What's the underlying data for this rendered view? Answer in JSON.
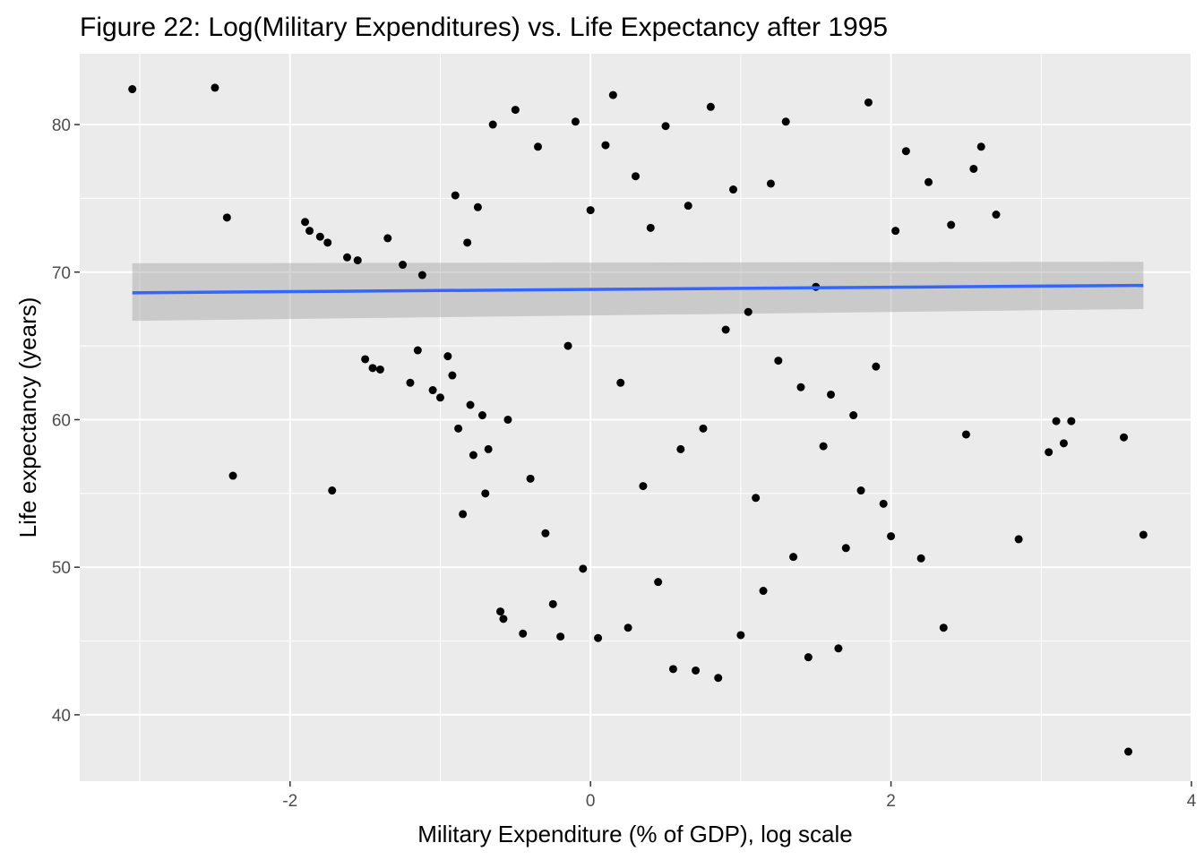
{
  "chart_data": {
    "type": "scatter",
    "title": "Figure 22: Log(Military Expenditures) vs. Life Expectancy after 1995",
    "xlabel": "Military Expenditure (% of GDP), log scale",
    "ylabel": "Life expectancy (years)",
    "xlim": [
      -3.4,
      4.0
    ],
    "ylim": [
      35.5,
      84.8
    ],
    "x_ticks": [
      -2,
      0,
      2,
      4
    ],
    "x_tick_labels": [
      "-2",
      "0",
      "2",
      "4"
    ],
    "y_ticks": [
      40,
      50,
      60,
      70,
      80
    ],
    "y_tick_labels": [
      "40",
      "50",
      "60",
      "70",
      "80"
    ],
    "grid": true,
    "legend": "none",
    "colors": {
      "panel": "#ebebeb",
      "grid": "#ffffff",
      "point": "#000000",
      "fit": "#3366ff",
      "ribbon": "#999999"
    },
    "fit_line": {
      "method": "lm",
      "x": [
        -3.05,
        3.68
      ],
      "y": [
        68.6,
        69.1
      ],
      "ci_lower": [
        66.7,
        67.5
      ],
      "ci_upper": [
        70.6,
        70.7
      ]
    },
    "points": {
      "x": [
        -3.05,
        -2.5,
        -2.42,
        -2.38,
        -1.9,
        -1.87,
        -1.8,
        -1.75,
        -1.72,
        -1.62,
        -1.55,
        -1.5,
        -1.45,
        -1.4,
        -1.35,
        -1.25,
        -1.2,
        -1.15,
        -1.12,
        -1.05,
        -1.0,
        -0.95,
        -0.92,
        -0.9,
        -0.88,
        -0.85,
        -0.82,
        -0.8,
        -0.78,
        -0.75,
        -0.72,
        -0.7,
        -0.68,
        -0.65,
        -0.6,
        -0.58,
        -0.55,
        -0.5,
        -0.45,
        -0.4,
        -0.35,
        -0.3,
        -0.25,
        -0.2,
        -0.15,
        -0.1,
        -0.05,
        0.0,
        0.05,
        0.1,
        0.15,
        0.2,
        0.25,
        0.3,
        0.35,
        0.4,
        0.45,
        0.5,
        0.55,
        0.6,
        0.65,
        0.7,
        0.75,
        0.8,
        0.85,
        0.9,
        0.95,
        1.0,
        1.05,
        1.1,
        1.15,
        1.2,
        1.25,
        1.3,
        1.35,
        1.4,
        1.45,
        1.5,
        1.55,
        1.6,
        1.65,
        1.7,
        1.75,
        1.8,
        1.85,
        1.9,
        1.95,
        2.0,
        2.03,
        2.1,
        2.2,
        2.25,
        2.35,
        2.4,
        2.5,
        2.55,
        2.6,
        2.7,
        2.85,
        3.05,
        3.1,
        3.15,
        3.2,
        3.55,
        3.58,
        3.68
      ],
      "y": [
        82.4,
        82.5,
        73.7,
        56.2,
        73.4,
        72.8,
        72.4,
        72.0,
        55.2,
        71.0,
        70.8,
        64.1,
        63.5,
        63.4,
        72.3,
        70.5,
        62.5,
        64.7,
        69.8,
        62.0,
        61.5,
        64.3,
        63.0,
        75.2,
        59.4,
        53.6,
        72.0,
        61.0,
        57.6,
        74.4,
        60.3,
        55.0,
        58.0,
        80.0,
        47.0,
        46.5,
        60.0,
        81.0,
        45.5,
        56.0,
        78.5,
        52.3,
        47.5,
        45.3,
        65.0,
        80.2,
        49.9,
        74.2,
        45.2,
        78.6,
        82.0,
        62.5,
        45.9,
        76.5,
        55.5,
        73.0,
        49.0,
        79.9,
        43.1,
        58.0,
        74.5,
        43.0,
        59.4,
        81.2,
        42.5,
        66.1,
        75.6,
        45.4,
        67.3,
        54.7,
        48.4,
        76.0,
        64.0,
        80.2,
        50.7,
        62.2,
        43.9,
        69.0,
        58.2,
        61.7,
        44.5,
        51.3,
        60.3,
        55.2,
        81.5,
        63.6,
        54.3,
        52.1,
        72.8,
        78.2,
        50.6,
        76.1,
        45.9,
        73.2,
        59.0,
        77.0,
        78.5,
        73.9,
        51.9,
        57.8,
        59.9,
        58.4,
        59.9,
        58.8,
        37.5,
        52.2
      ]
    }
  }
}
